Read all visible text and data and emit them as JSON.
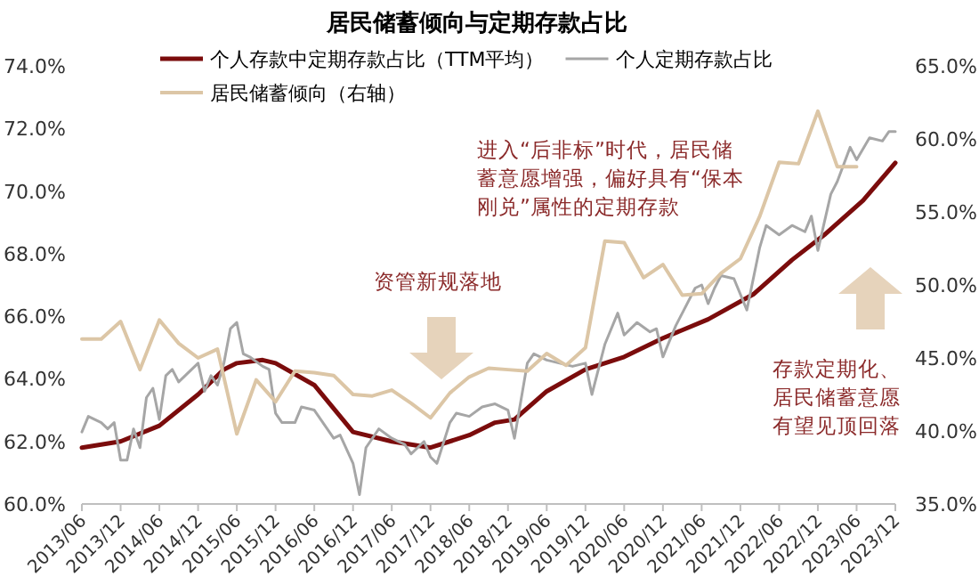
{
  "chart_data": {
    "type": "line",
    "title": "居民储蓄倾向与定期存款占比",
    "legend": "top",
    "grid": false,
    "marker": "none",
    "ylim": [
      60,
      74
    ],
    "yticks": [
      {
        "value": 60,
        "label": "60.0%"
      },
      {
        "value": 62,
        "label": "62.0%"
      },
      {
        "value": 64,
        "label": "64.0%"
      },
      {
        "value": 66,
        "label": "66.0%"
      },
      {
        "value": 68,
        "label": "68.0%"
      },
      {
        "value": 70,
        "label": "70.0%"
      },
      {
        "value": 72,
        "label": "72.0%"
      },
      {
        "value": 74,
        "label": "74.0%"
      }
    ],
    "y2lim": [
      35,
      65
    ],
    "y2ticks": [
      {
        "value": 35,
        "label": "35.0%"
      },
      {
        "value": 40,
        "label": "40.0%"
      },
      {
        "value": 45,
        "label": "45.0%"
      },
      {
        "value": 50,
        "label": "50.0%"
      },
      {
        "value": 55,
        "label": "55.0%"
      },
      {
        "value": 60,
        "label": "60.0%"
      },
      {
        "value": 65,
        "label": "65.0%"
      }
    ],
    "xlim": [
      "2013-06",
      "2023-12"
    ],
    "xticks": [
      {
        "value": "2013-06",
        "label": "2013/06"
      },
      {
        "value": "2013-12",
        "label": "2013/12"
      },
      {
        "value": "2014-06",
        "label": "2014/06"
      },
      {
        "value": "2014-12",
        "label": "2014/12"
      },
      {
        "value": "2015-06",
        "label": "2015/06"
      },
      {
        "value": "2015-12",
        "label": "2015/12"
      },
      {
        "value": "2016-06",
        "label": "2016/06"
      },
      {
        "value": "2016-12",
        "label": "2016/12"
      },
      {
        "value": "2017-06",
        "label": "2017/06"
      },
      {
        "value": "2017-12",
        "label": "2017/12"
      },
      {
        "value": "2018-06",
        "label": "2018/06"
      },
      {
        "value": "2018-12",
        "label": "2018/12"
      },
      {
        "value": "2019-06",
        "label": "2019/06"
      },
      {
        "value": "2019-12",
        "label": "2019/12"
      },
      {
        "value": "2020-06",
        "label": "2020/06"
      },
      {
        "value": "2020-12",
        "label": "2020/12"
      },
      {
        "value": "2021-06",
        "label": "2021/06"
      },
      {
        "value": "2021-12",
        "label": "2021/12"
      },
      {
        "value": "2022-06",
        "label": "2022/06"
      },
      {
        "value": "2022-12",
        "label": "2022/12"
      },
      {
        "value": "2023-06",
        "label": "2023/06"
      },
      {
        "value": "2023-12",
        "label": "2023/12"
      }
    ],
    "series": [
      {
        "name": "个人存款中定期存款占比（TTM平均）",
        "color": "#7b0c0c",
        "x": [
          "2013-06",
          "2013-12",
          "2014-06",
          "2014-12",
          "2015-04",
          "2015-06",
          "2015-10",
          "2015-12",
          "2016-06",
          "2016-12",
          "2017-06",
          "2017-12",
          "2018-06",
          "2018-10",
          "2019-01",
          "2019-06",
          "2019-12",
          "2020-06",
          "2020-12",
          "2021-07",
          "2022-02",
          "2022-08",
          "2023-01",
          "2023-07",
          "2023-12"
        ],
        "values": [
          61.8,
          62.0,
          62.5,
          63.5,
          64.3,
          64.5,
          64.6,
          64.5,
          63.8,
          62.3,
          62.0,
          61.8,
          62.2,
          62.6,
          62.7,
          63.6,
          64.3,
          64.7,
          65.3,
          65.9,
          66.7,
          67.8,
          68.6,
          69.7,
          70.9
        ]
      },
      {
        "name": "个人定期存款占比",
        "color": "#a6a6a6",
        "x": [
          "2013-06",
          "2013-07",
          "2013-09",
          "2013-10",
          "2013-11",
          "2013-12",
          "2014-01",
          "2014-02",
          "2014-03",
          "2014-04",
          "2014-05",
          "2014-06",
          "2014-07",
          "2014-08",
          "2014-09",
          "2014-11",
          "2014-12",
          "2015-01",
          "2015-02",
          "2015-03",
          "2015-04",
          "2015-05",
          "2015-06",
          "2015-07",
          "2015-08",
          "2015-10",
          "2015-11",
          "2015-12",
          "2016-01",
          "2016-03",
          "2016-04",
          "2016-06",
          "2016-07",
          "2016-09",
          "2016-10",
          "2016-12",
          "2017-01",
          "2017-02",
          "2017-04",
          "2017-06",
          "2017-08",
          "2017-09",
          "2017-11",
          "2017-12",
          "2018-01",
          "2018-03",
          "2018-04",
          "2018-06",
          "2018-08",
          "2018-10",
          "2018-12",
          "2019-01",
          "2019-03",
          "2019-04",
          "2019-06",
          "2019-10",
          "2019-12",
          "2020-01",
          "2020-03",
          "2020-05",
          "2020-06",
          "2020-08",
          "2020-10",
          "2020-11",
          "2020-12",
          "2021-02",
          "2021-03",
          "2021-05",
          "2021-06",
          "2021-07",
          "2021-08",
          "2021-09",
          "2021-11",
          "2022-01",
          "2022-03",
          "2022-04",
          "2022-06",
          "2022-08",
          "2022-10",
          "2022-11",
          "2022-12",
          "2023-02",
          "2023-03",
          "2023-05",
          "2023-06",
          "2023-08",
          "2023-10",
          "2023-11",
          "2023-12"
        ],
        "values": [
          62.3,
          62.8,
          62.6,
          62.4,
          62.6,
          61.4,
          61.4,
          62.4,
          61.8,
          63.4,
          63.7,
          62.7,
          64.1,
          64.3,
          63.9,
          64.3,
          64.5,
          63.6,
          64.1,
          63.8,
          64.5,
          65.6,
          65.8,
          64.8,
          64.7,
          64.4,
          64.3,
          62.9,
          62.6,
          62.6,
          63.1,
          63.0,
          62.7,
          62.1,
          62.2,
          61.3,
          60.3,
          61.8,
          62.4,
          62.1,
          61.9,
          61.6,
          62.0,
          61.5,
          61.3,
          62.6,
          62.9,
          62.8,
          63.1,
          63.2,
          63.0,
          62.1,
          64.5,
          64.8,
          64.6,
          64.4,
          64.5,
          63.5,
          65.1,
          66.1,
          65.4,
          65.8,
          65.5,
          65.6,
          64.7,
          65.7,
          66.1,
          66.9,
          67.0,
          66.4,
          66.9,
          67.3,
          67.2,
          66.2,
          68.2,
          68.9,
          68.6,
          68.9,
          68.7,
          69.2,
          68.1,
          69.9,
          70.3,
          71.4,
          71.0,
          71.7,
          71.6,
          71.9,
          71.9
        ]
      },
      {
        "name": "居民储蓄倾向（右轴）",
        "color": "#dcc6a6",
        "axis": "y2",
        "x": [
          "2013-06",
          "2013-09",
          "2013-12",
          "2014-03",
          "2014-06",
          "2014-09",
          "2014-12",
          "2015-03",
          "2015-06",
          "2015-09",
          "2015-12",
          "2016-03",
          "2016-06",
          "2016-09",
          "2016-12",
          "2017-03",
          "2017-06",
          "2017-09",
          "2017-12",
          "2018-03",
          "2018-06",
          "2018-09",
          "2018-12",
          "2019-03",
          "2019-06",
          "2019-09",
          "2019-12",
          "2020-03",
          "2020-06",
          "2020-09",
          "2020-12",
          "2021-03",
          "2021-06",
          "2021-09",
          "2021-12",
          "2022-03",
          "2022-06",
          "2022-09",
          "2022-12",
          "2023-03",
          "2023-06"
        ],
        "values": [
          46.3,
          46.3,
          47.5,
          44.2,
          47.6,
          46.0,
          45.0,
          45.6,
          39.8,
          43.5,
          42.0,
          44.1,
          44.0,
          43.8,
          42.5,
          42.4,
          42.8,
          41.9,
          40.9,
          42.6,
          43.7,
          44.3,
          44.2,
          44.1,
          45.3,
          44.5,
          45.7,
          53.0,
          52.9,
          50.5,
          51.4,
          49.3,
          49.4,
          50.8,
          51.8,
          54.7,
          58.4,
          58.3,
          61.9,
          58.1,
          58.1
        ]
      }
    ],
    "annotations": [
      "资管新规落地",
      "进入“后非标”时代，居民储蓄意愿增强，偏好具有“保本刚兑”属性的定期存款",
      "存款定期化、居民储蓄意愿有望见顶回落"
    ]
  }
}
